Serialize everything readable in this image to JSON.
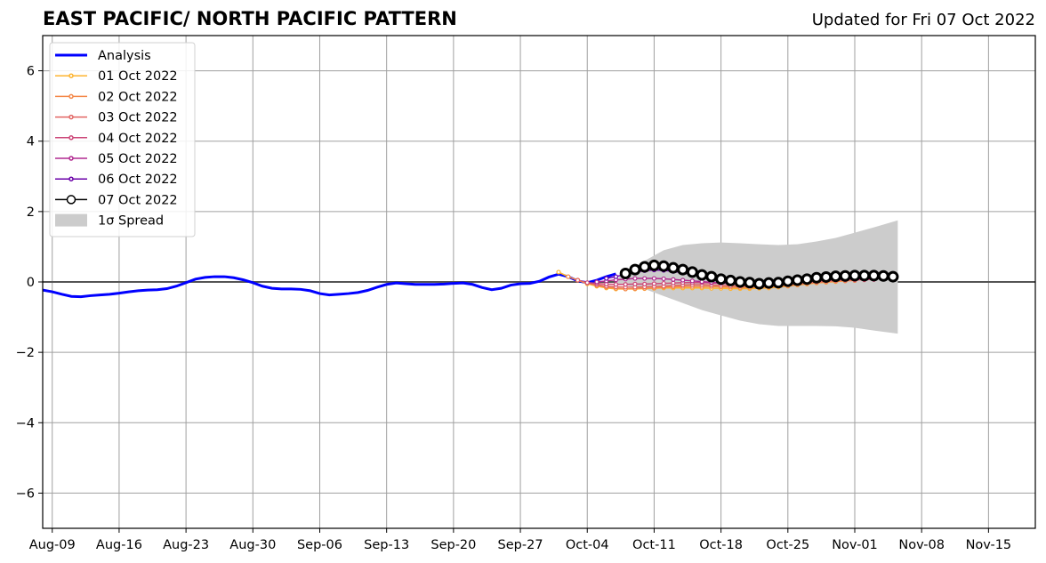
{
  "chart_data": {
    "type": "line",
    "title": "EAST PACIFIC/ NORTH PACIFIC PATTERN",
    "subtitle": "Updated for Fri 07 Oct 2022",
    "xlabel": "",
    "ylabel": "",
    "x_units": "days since Aug-09 2022",
    "xlim": [
      -1,
      102.9
    ],
    "ylim": [
      -7,
      7
    ],
    "grid": true,
    "legend_placement": "top-left",
    "x_ticks": [
      0,
      7,
      14,
      21,
      28,
      35,
      42,
      49,
      56,
      63,
      70,
      77,
      84,
      91,
      98
    ],
    "x_tick_labels": [
      "Aug-09",
      "Aug-16",
      "Aug-23",
      "Aug-30",
      "Sep-06",
      "Sep-13",
      "Sep-20",
      "Sep-27",
      "Oct-04",
      "Oct-11",
      "Oct-18",
      "Oct-25",
      "Nov-01",
      "Nov-08",
      "Nov-15"
    ],
    "y_ticks": [
      -6,
      -4,
      -2,
      0,
      2,
      4,
      6
    ],
    "y_tick_labels": [
      "−6",
      "−4",
      "−2",
      "0",
      "2",
      "4",
      "6"
    ],
    "analysis": {
      "name": "Analysis",
      "color": "#0000ff",
      "x_start": -1,
      "values": [
        -0.23,
        -0.28,
        -0.35,
        -0.41,
        -0.42,
        -0.39,
        -0.37,
        -0.35,
        -0.32,
        -0.28,
        -0.25,
        -0.23,
        -0.22,
        -0.19,
        -0.12,
        -0.02,
        0.08,
        0.13,
        0.15,
        0.15,
        0.12,
        0.06,
        -0.02,
        -0.12,
        -0.18,
        -0.2,
        -0.2,
        -0.21,
        -0.25,
        -0.33,
        -0.37,
        -0.35,
        -0.33,
        -0.3,
        -0.24,
        -0.15,
        -0.07,
        -0.03,
        -0.05,
        -0.07,
        -0.07,
        -0.07,
        -0.06,
        -0.04,
        -0.03,
        -0.07,
        -0.16,
        -0.22,
        -0.18,
        -0.09,
        -0.05,
        -0.04,
        0.02,
        0.14,
        0.22,
        0.15,
        0.03,
        -0.02,
        0.05,
        0.15,
        0.23
      ]
    },
    "forecasts": [
      {
        "name": "01 Oct 2022",
        "color": "#fdb42f",
        "x_start": 53,
        "values": [
          0.28,
          0.15,
          0.05,
          -0.05,
          -0.12,
          -0.17,
          -0.2,
          -0.2,
          -0.2,
          -0.19,
          -0.18,
          -0.17,
          -0.17,
          -0.17,
          -0.17,
          -0.17,
          -0.18,
          -0.18,
          -0.19,
          -0.19,
          -0.19,
          -0.18,
          -0.17,
          -0.15,
          -0.12,
          -0.09,
          -0.06,
          -0.03,
          -0.01,
          0.01,
          0.03
        ]
      },
      {
        "name": "02 Oct 2022",
        "color": "#f48849",
        "x_start": 54,
        "values": [
          0.15,
          0.05,
          -0.03,
          -0.1,
          -0.15,
          -0.18,
          -0.2,
          -0.19,
          -0.18,
          -0.17,
          -0.15,
          -0.14,
          -0.13,
          -0.13,
          -0.13,
          -0.13,
          -0.14,
          -0.15,
          -0.16,
          -0.16,
          -0.16,
          -0.15,
          -0.13,
          -0.11,
          -0.08,
          -0.05,
          -0.02,
          0.0,
          0.02,
          0.03,
          0.04
        ]
      },
      {
        "name": "03 Oct 2022",
        "color": "#e16462",
        "x_start": 55,
        "values": [
          0.05,
          -0.02,
          -0.08,
          -0.12,
          -0.14,
          -0.15,
          -0.15,
          -0.14,
          -0.13,
          -0.12,
          -0.1,
          -0.09,
          -0.08,
          -0.08,
          -0.09,
          -0.1,
          -0.11,
          -0.12,
          -0.12,
          -0.12,
          -0.11,
          -0.09,
          -0.07,
          -0.05,
          -0.02,
          0,
          0.02,
          0.04,
          0.05,
          0.06,
          0.06
        ]
      },
      {
        "name": "04 Oct 2022",
        "color": "#cc4778",
        "x_start": 56,
        "values": [
          -0.02,
          -0.04,
          -0.06,
          -0.07,
          -0.07,
          -0.06,
          -0.06,
          -0.05,
          -0.04,
          -0.03,
          -0.02,
          -0.02,
          -0.02,
          -0.03,
          -0.04,
          -0.05,
          -0.06,
          -0.06,
          -0.06,
          -0.05,
          -0.04,
          -0.02,
          0,
          0.02,
          0.04,
          0.05,
          0.06,
          0.07,
          0.07,
          0.07,
          0.07
        ]
      },
      {
        "name": "05 Oct 2022",
        "color": "#b12a90",
        "x_start": 57,
        "values": [
          0.0,
          0.03,
          0.06,
          0.08,
          0.1,
          0.1,
          0.1,
          0.09,
          0.07,
          0.05,
          0.03,
          0.01,
          -0.01,
          -0.03,
          -0.04,
          -0.05,
          -0.05,
          -0.04,
          -0.03,
          -0.01,
          0.01,
          0.03,
          0.05,
          0.07,
          0.08,
          0.09,
          0.1,
          0.1,
          0.1,
          0.1,
          0.1
        ]
      },
      {
        "name": "06 Oct 2022",
        "color": "#6a00a8",
        "x_start": 58,
        "values": [
          0.1,
          0.15,
          0.22,
          0.28,
          0.32,
          0.34,
          0.33,
          0.3,
          0.26,
          0.21,
          0.16,
          0.12,
          0.08,
          0.04,
          0.01,
          -0.01,
          -0.02,
          -0.02,
          -0.01,
          0.01,
          0.04,
          0.07,
          0.1,
          0.12,
          0.14,
          0.15,
          0.16,
          0.16,
          0.16,
          0.15,
          0.15
        ]
      },
      {
        "name": "07 Oct 2022",
        "color": "#000000",
        "x_start": 60,
        "values": [
          0.24,
          0.35,
          0.43,
          0.47,
          0.45,
          0.4,
          0.35,
          0.28,
          0.2,
          0.15,
          0.08,
          0.04,
          0,
          -0.02,
          -0.05,
          -0.03,
          -0.02,
          0.02,
          0.05,
          0.08,
          0.12,
          0.14,
          0.16,
          0.17,
          0.18,
          0.18,
          0.18,
          0.17,
          0.15
        ]
      }
    ],
    "spread": {
      "name": "1σ Spread",
      "color": "#cccccc",
      "x": [
        59,
        60,
        62,
        64,
        66,
        68,
        70,
        72,
        74,
        76,
        78,
        80,
        82,
        84,
        86,
        88.5
      ],
      "upper": [
        0.05,
        0.3,
        0.6,
        0.9,
        1.05,
        1.1,
        1.12,
        1.1,
        1.07,
        1.05,
        1.07,
        1.15,
        1.25,
        1.4,
        1.55,
        1.75
      ],
      "lower": [
        -0.05,
        -0.1,
        -0.2,
        -0.4,
        -0.6,
        -0.8,
        -0.95,
        -1.1,
        -1.2,
        -1.25,
        -1.25,
        -1.25,
        -1.26,
        -1.3,
        -1.38,
        -1.47
      ]
    }
  }
}
